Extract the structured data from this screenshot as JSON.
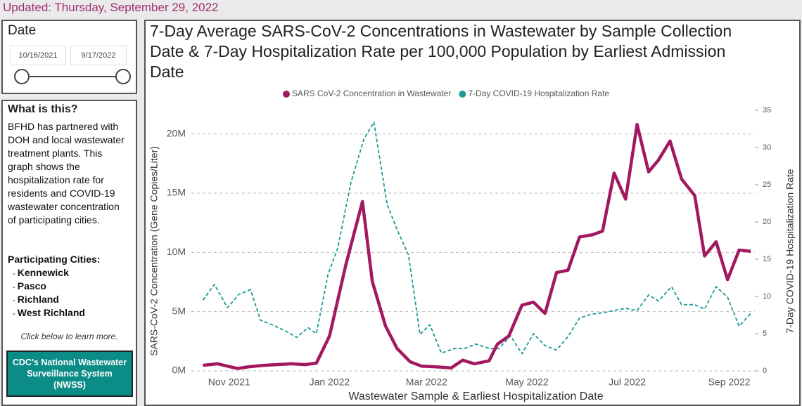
{
  "updated": "Updated: Thursday, September 29, 2022",
  "sidebar": {
    "date_label": "Date",
    "date_from": "10/16/2021",
    "date_to": "9/17/2022",
    "what_title": "What is this?",
    "description": "BFHD has partnered with DOH and local wastewater treatment plants. This graph shows the hospitalization rate for residents and COVID-19 wastewater concentration of participating cities.",
    "cities_label": "Participating Cities:",
    "cities": [
      "Kennewick",
      "Pasco",
      "Richland",
      "West Richland"
    ],
    "click_note": "Click below to learn more.",
    "button": "CDC's National Wastewater Surveillance System (NWSS)"
  },
  "chart_data": {
    "type": "line",
    "title": "7-Day Average SARS-CoV-2 Concentrations in Wastewater by Sample Collection Date & 7-Day Hospitalization Rate per 100,000 Population by Earliest Admission Date",
    "x_label": "Wastewater Sample & Earliest Hospitalization Date",
    "y_label": "SARS-CoV-2 Concentration (Gene Copies/Liter)",
    "y2_label": "7-Day COVID-19 Hospitalization Rate",
    "xlim": [
      "2021-10-09",
      "2022-09-20"
    ],
    "xticks": [
      {
        "value": "2021-11-01",
        "label": "Nov 2021"
      },
      {
        "value": "2022-01-01",
        "label": "Jan 2022"
      },
      {
        "value": "2022-03-01",
        "label": "Mar 2022"
      },
      {
        "value": "2022-05-01",
        "label": "May 2022"
      },
      {
        "value": "2022-07-01",
        "label": "Jul 2022"
      },
      {
        "value": "2022-09-01",
        "label": "Sep 2022"
      }
    ],
    "ylim": [
      0,
      22000000
    ],
    "yticks": [
      {
        "value": 0,
        "label": "0M"
      },
      {
        "value": 5000000,
        "label": "5M"
      },
      {
        "value": 10000000,
        "label": "10M"
      },
      {
        "value": 15000000,
        "label": "15M"
      },
      {
        "value": 20000000,
        "label": "20M"
      }
    ],
    "y2lim": [
      0,
      35
    ],
    "y2ticks": [
      0,
      5,
      10,
      15,
      20,
      25,
      30,
      35
    ],
    "grid": true,
    "legend": "top",
    "series": [
      {
        "name": "SARS CoV-2 Concentration in Wastewater",
        "color": "#a3195f",
        "style": "solid",
        "x": [
          "2021-10-16",
          "2021-10-25",
          "2021-10-31",
          "2021-11-06",
          "2021-11-13",
          "2021-11-22",
          "2021-11-30",
          "2021-12-09",
          "2021-12-17",
          "2021-12-24",
          "2022-01-01",
          "2022-01-11",
          "2022-01-21",
          "2022-01-27",
          "2022-02-04",
          "2022-02-11",
          "2022-02-19",
          "2022-02-26",
          "2022-03-06",
          "2022-03-16",
          "2022-03-23",
          "2022-03-30",
          "2022-04-08",
          "2022-04-13",
          "2022-04-20",
          "2022-04-28",
          "2022-05-05",
          "2022-05-12",
          "2022-05-19",
          "2022-05-26",
          "2022-06-02",
          "2022-06-10",
          "2022-06-16",
          "2022-06-23",
          "2022-06-30",
          "2022-07-07",
          "2022-07-14",
          "2022-07-20",
          "2022-07-27",
          "2022-08-03",
          "2022-08-11",
          "2022-08-17",
          "2022-08-24",
          "2022-08-31",
          "2022-09-07",
          "2022-09-14"
        ],
        "values": [
          470000,
          600000,
          400000,
          200000,
          350000,
          470000,
          530000,
          600000,
          530000,
          650000,
          2950000,
          9000000,
          14300000,
          7550000,
          3800000,
          1900000,
          770000,
          400000,
          350000,
          250000,
          900000,
          600000,
          850000,
          2250000,
          2950000,
          5550000,
          5800000,
          4850000,
          8300000,
          8500000,
          11300000,
          11500000,
          11800000,
          16700000,
          14500000,
          20800000,
          16800000,
          17800000,
          19400000,
          16200000,
          14800000,
          9700000,
          10900000,
          7700000,
          10200000,
          10100000
        ]
      },
      {
        "name": "7-Day COVID-19 Hospitalization Rate",
        "color": "#1b9a96",
        "style": "dashed",
        "axis": "y2",
        "x": [
          "2021-10-16",
          "2021-10-23",
          "2021-10-31",
          "2021-11-07",
          "2021-11-14",
          "2021-11-20",
          "2021-11-27",
          "2021-12-05",
          "2021-12-12",
          "2021-12-19",
          "2021-12-24",
          "2021-12-31",
          "2022-01-06",
          "2022-01-14",
          "2022-01-22",
          "2022-01-28",
          "2022-02-05",
          "2022-02-11",
          "2022-02-18",
          "2022-02-25",
          "2022-03-03",
          "2022-03-10",
          "2022-03-18",
          "2022-03-24",
          "2022-03-31",
          "2022-04-08",
          "2022-04-14",
          "2022-04-21",
          "2022-04-28",
          "2022-05-05",
          "2022-05-12",
          "2022-05-19",
          "2022-05-26",
          "2022-06-02",
          "2022-06-09",
          "2022-06-16",
          "2022-06-23",
          "2022-06-30",
          "2022-07-07",
          "2022-07-14",
          "2022-07-20",
          "2022-07-28",
          "2022-08-03",
          "2022-08-11",
          "2022-08-17",
          "2022-08-24",
          "2022-08-31",
          "2022-09-07",
          "2022-09-14"
        ],
        "values": [
          9.5,
          11.6,
          8.5,
          10.3,
          10.9,
          6.8,
          6.2,
          5.4,
          4.5,
          5.8,
          5.0,
          12.9,
          16.5,
          25.3,
          31.2,
          33.4,
          22.4,
          19.0,
          15.6,
          4.9,
          6.2,
          2.4,
          3.0,
          3.0,
          3.6,
          3.0,
          3.0,
          4.7,
          2.3,
          5.0,
          3.4,
          2.8,
          4.6,
          7.1,
          7.6,
          7.8,
          8.1,
          8.4,
          8.1,
          10.2,
          9.4,
          11.3,
          8.9,
          8.9,
          8.3,
          11.3,
          9.9,
          6.0,
          7.7
        ]
      }
    ]
  }
}
